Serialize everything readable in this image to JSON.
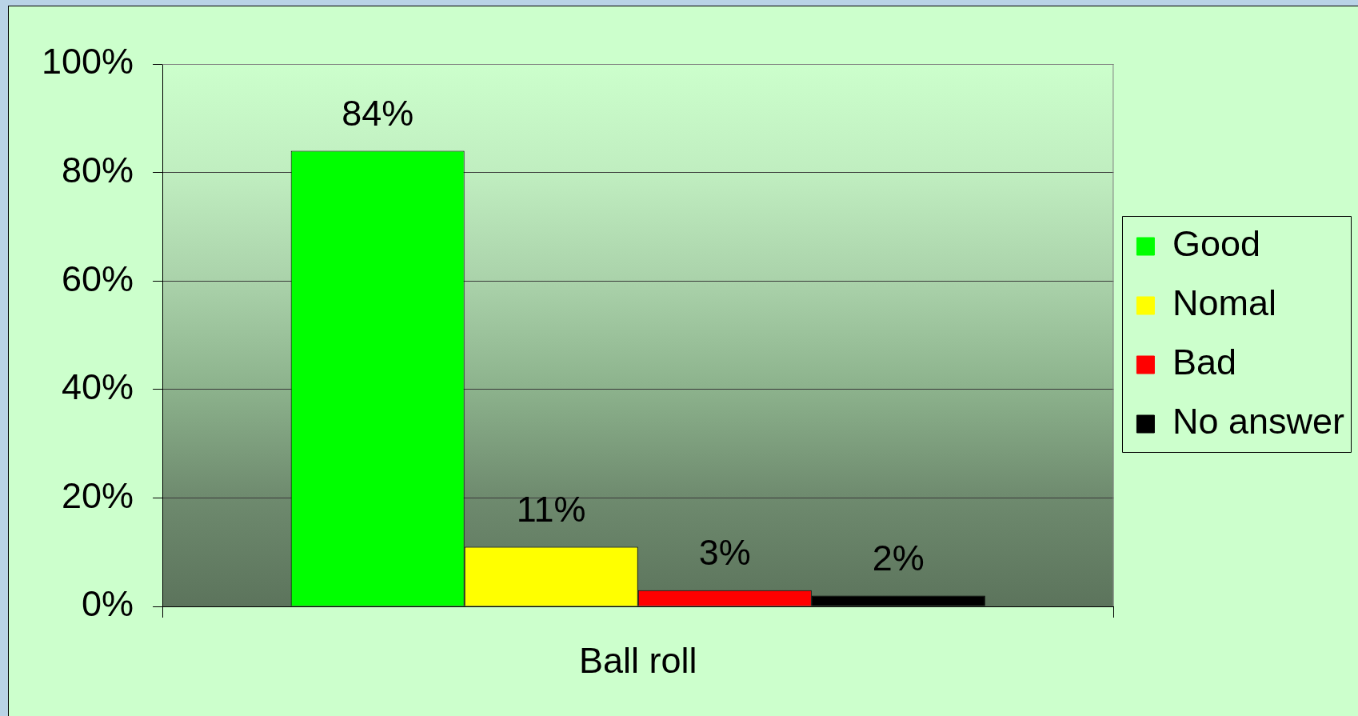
{
  "chart_data": {
    "type": "bar",
    "categories": [
      "Ball roll"
    ],
    "series": [
      {
        "name": "Good",
        "color": "#00ff00",
        "values": [
          84
        ],
        "value_labels": [
          "84%"
        ]
      },
      {
        "name": "Nomal",
        "color": "#ffff00",
        "values": [
          11
        ],
        "value_labels": [
          "11%"
        ]
      },
      {
        "name": "Bad",
        "color": "#ff0000",
        "values": [
          3
        ],
        "value_labels": [
          "3%"
        ]
      },
      {
        "name": "No answer",
        "color": "#000000",
        "values": [
          2
        ],
        "value_labels": [
          "2%"
        ]
      }
    ],
    "ylim": [
      0,
      100
    ],
    "yticks": [
      {
        "value": 0,
        "label": "0%"
      },
      {
        "value": 20,
        "label": "20%"
      },
      {
        "value": 40,
        "label": "40%"
      },
      {
        "value": 60,
        "label": "60%"
      },
      {
        "value": 80,
        "label": "80%"
      },
      {
        "value": 100,
        "label": "100%"
      }
    ],
    "grid": "y",
    "legend": "right"
  }
}
